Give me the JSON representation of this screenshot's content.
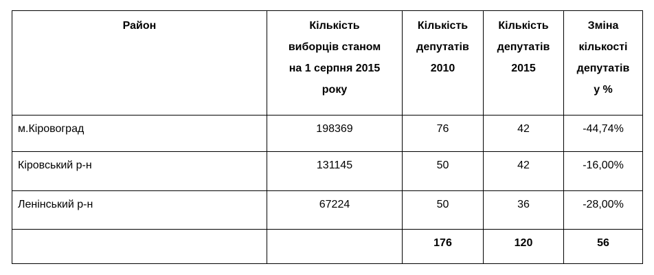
{
  "table": {
    "headers": [
      [
        "Район"
      ],
      [
        "Кількість",
        "виборців станом",
        "на 1 серпня 2015",
        "року"
      ],
      [
        "Кількість",
        "депутатів",
        "2010"
      ],
      [
        "Кількість",
        "депутатів",
        "2015"
      ],
      [
        "Зміна",
        "кількості",
        "депутатів",
        "у %"
      ]
    ],
    "rows": [
      [
        "м.Кіровоград",
        "198369",
        "76",
        "42",
        "-44,74%"
      ],
      [
        "Кіровський р-н",
        "131145",
        "50",
        "42",
        "-16,00%"
      ],
      [
        "Ленінський р-н",
        "67224",
        "50",
        "36",
        "-28,00%"
      ],
      [
        null,
        null,
        "176",
        "120",
        "56"
      ]
    ]
  }
}
